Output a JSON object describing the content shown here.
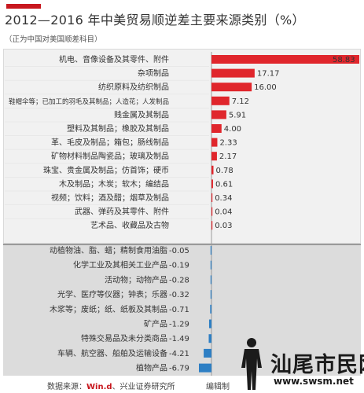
{
  "header": {
    "title": "2012—2016 年中美贸易顺逆差主要来源类别（%）",
    "subtitle": "（正为中国对美国顺差科目）"
  },
  "colors": {
    "accent": "#c8181f",
    "positive_bar": "#e0262c",
    "negative_bar": "#2e7fc4",
    "positive_bg": "#f1f1f1",
    "negative_bg": "#dcdcdc"
  },
  "chart_data": {
    "type": "bar",
    "orientation": "horizontal",
    "title": "2012—2016 年中美贸易顺逆差主要来源类别（%）",
    "subtitle": "（正为中国对美国顺差科目）",
    "categories": [
      "机电、音像设备及其零件、附件",
      "杂项制品",
      "纺织原料及纺织制品",
      "鞋帽伞等；已加工的羽毛及其制品；人造花；人发制品",
      "贱金属及其制品",
      "塑料及其制品；橡胶及其制品",
      "革、毛皮及制品；箱包；肠线制品",
      "矿物材料制品陶瓷品；玻璃及制品",
      "珠宝、贵金属及制品；仿首饰；硬币",
      "木及制品；木炭；软木；编结品",
      "视频；饮料；酒及醋；烟草及制品",
      "武器、弹药及其零件、附件",
      "艺术品、收藏品及古物",
      "动植物油、脂、蜡；精制食用油脂",
      "化学工业及其相关工业产品",
      "活动物；动物产品",
      "光学、医疗等仪器；钟表；乐器",
      "木浆等；废纸；纸、纸板及其制品",
      "矿产品",
      "特殊交易品及未分类商品",
      "车辆、航空器、船舶及运输设备",
      "植物产品"
    ],
    "values": [
      58.83,
      17.17,
      16.0,
      7.12,
      5.91,
      4.0,
      2.33,
      2.17,
      0.78,
      0.61,
      0.34,
      0.04,
      0.03,
      -0.05,
      -0.19,
      -0.28,
      -0.32,
      -0.71,
      -1.29,
      -1.49,
      -4.21,
      -6.79
    ],
    "value_labels": [
      "58.83",
      "17.17",
      "16.00",
      "7.12",
      "5.91",
      "4.00",
      "2.33",
      "2.17",
      "0.78",
      "0.61",
      "0.34",
      "0.04",
      "0.03",
      "-0.05",
      "-0.19",
      "-0.28",
      "-0.32",
      "-0.71",
      "-1.29",
      "-1.49",
      "-4.21",
      "-6.79"
    ],
    "xlim": [
      -6.79,
      58.83
    ]
  },
  "footer": {
    "source_prefix": "数据来源：",
    "source_wind": "Win.d",
    "source_suffix": "、兴业证券研究所",
    "editor": "编辑制"
  },
  "watermark": {
    "logo_text": "汕尾市民网",
    "url": "www.swsm.net"
  }
}
